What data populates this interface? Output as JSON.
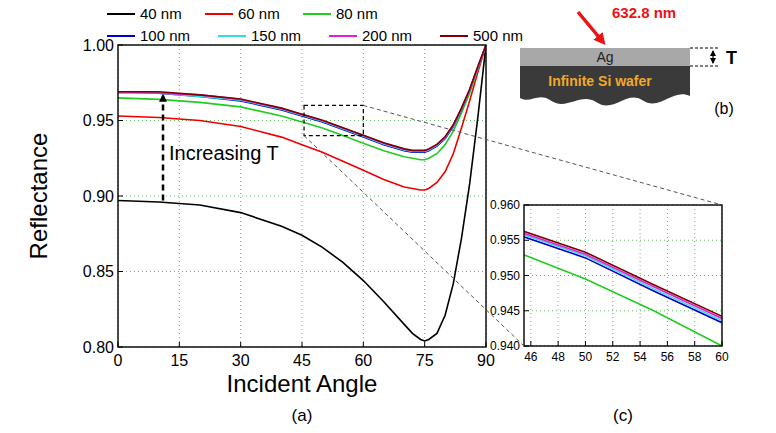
{
  "chart_data": [
    {
      "type": "line",
      "panel_label": "(a)",
      "x_label": "Incident Angle",
      "y_label": "Reflectance",
      "annotations": [
        "Increasing T"
      ],
      "legend": "top",
      "grid": true,
      "x": [
        0,
        10,
        20,
        30,
        40,
        45,
        50,
        55,
        60,
        65,
        70,
        72,
        74,
        75,
        76,
        78,
        80,
        82,
        84,
        86,
        88,
        90
      ],
      "xlim": [
        0,
        90
      ],
      "xticks": [
        0,
        15,
        30,
        45,
        60,
        75,
        90
      ],
      "ylim": [
        0.8,
        1
      ],
      "yticks": [
        {
          "value": 0.8,
          "label": "0.80"
        },
        {
          "value": 0.85,
          "label": "0.85"
        },
        {
          "value": 0.9,
          "label": "0.90"
        },
        {
          "value": 0.95,
          "label": "0.95"
        },
        {
          "value": 1,
          "label": "1.00"
        }
      ],
      "series": [
        {
          "name": "40 nm",
          "color": "#000000",
          "values": [
            0.897,
            0.896,
            0.894,
            0.889,
            0.88,
            0.874,
            0.866,
            0.856,
            0.844,
            0.83,
            0.815,
            0.809,
            0.805,
            0.804,
            0.805,
            0.809,
            0.821,
            0.842,
            0.872,
            0.908,
            0.952,
            1.0
          ]
        },
        {
          "name": "60 nm",
          "color": "#ee0000",
          "values": [
            0.953,
            0.952,
            0.95,
            0.946,
            0.939,
            0.934,
            0.929,
            0.923,
            0.917,
            0.911,
            0.906,
            0.905,
            0.904,
            0.904,
            0.905,
            0.909,
            0.916,
            0.928,
            0.945,
            0.963,
            0.982,
            1.0
          ]
        },
        {
          "name": "80 nm",
          "color": "#22cc22",
          "values": [
            0.965,
            0.964,
            0.962,
            0.959,
            0.953,
            0.949,
            0.945,
            0.94,
            0.935,
            0.93,
            0.926,
            0.925,
            0.924,
            0.924,
            0.925,
            0.928,
            0.934,
            0.943,
            0.955,
            0.968,
            0.984,
            1.0
          ]
        },
        {
          "name": "100 nm",
          "color": "#0000cc",
          "values": [
            0.968,
            0.968,
            0.966,
            0.963,
            0.957,
            0.953,
            0.949,
            0.944,
            0.939,
            0.934,
            0.93,
            0.929,
            0.929,
            0.929,
            0.93,
            0.933,
            0.938,
            0.946,
            0.957,
            0.97,
            0.985,
            1.0
          ]
        },
        {
          "name": "150 nm",
          "color": "#33dddd",
          "values": [
            0.968,
            0.968,
            0.966,
            0.9635,
            0.9575,
            0.9535,
            0.9495,
            0.9445,
            0.9395,
            0.9345,
            0.9305,
            0.9295,
            0.9295,
            0.9295,
            0.9305,
            0.9335,
            0.9385,
            0.9465,
            0.9575,
            0.97,
            0.985,
            1.0
          ]
        },
        {
          "name": "200 nm",
          "color": "#dd22dd",
          "values": [
            0.969,
            0.968,
            0.967,
            0.964,
            0.958,
            0.954,
            0.95,
            0.945,
            0.94,
            0.935,
            0.931,
            0.93,
            0.93,
            0.93,
            0.931,
            0.934,
            0.939,
            0.947,
            0.958,
            0.9705,
            0.9855,
            1.0
          ]
        },
        {
          "name": "500 nm",
          "color": "#800000",
          "values": [
            0.969,
            0.969,
            0.967,
            0.9642,
            0.9582,
            0.9542,
            0.9502,
            0.9452,
            0.9402,
            0.9352,
            0.9312,
            0.9302,
            0.9302,
            0.9302,
            0.9312,
            0.9342,
            0.9392,
            0.9472,
            0.9582,
            0.9707,
            0.9857,
            1.0
          ]
        }
      ]
    },
    {
      "type": "line",
      "panel_label": "(c)",
      "grid": true,
      "x": [
        45,
        50,
        55,
        60
      ],
      "xlim": [
        45.5,
        60
      ],
      "xticks": [
        46,
        48,
        50,
        52,
        54,
        56,
        58,
        60
      ],
      "ylim": [
        0.94,
        0.96
      ],
      "yticks": [
        {
          "value": 0.94,
          "label": "0.940"
        },
        {
          "value": 0.945,
          "label": "0.945"
        },
        {
          "value": 0.95,
          "label": "0.950"
        },
        {
          "value": 0.955,
          "label": "0.955"
        },
        {
          "value": 0.96,
          "label": "0.960"
        }
      ],
      "series": [
        {
          "color": "#22cc22",
          "values": [
            0.9533,
            0.9495,
            0.945,
            0.94
          ]
        },
        {
          "color": "#0000cc",
          "values": [
            0.9558,
            0.9525,
            0.9478,
            0.9433
          ]
        },
        {
          "color": "#33dddd",
          "values": [
            0.9561,
            0.9528,
            0.9481,
            0.9436
          ]
        },
        {
          "color": "#dd22dd",
          "values": [
            0.9563,
            0.953,
            0.9484,
            0.9439
          ]
        },
        {
          "color": "#800000",
          "values": [
            0.9566,
            0.9533,
            0.9487,
            0.9442
          ]
        }
      ]
    }
  ],
  "diagram": {
    "panel_label": "(b)",
    "wavelength": "632.8 nm",
    "film": "Ag",
    "substrate": "Infinite Si wafer",
    "thickness": "T"
  }
}
